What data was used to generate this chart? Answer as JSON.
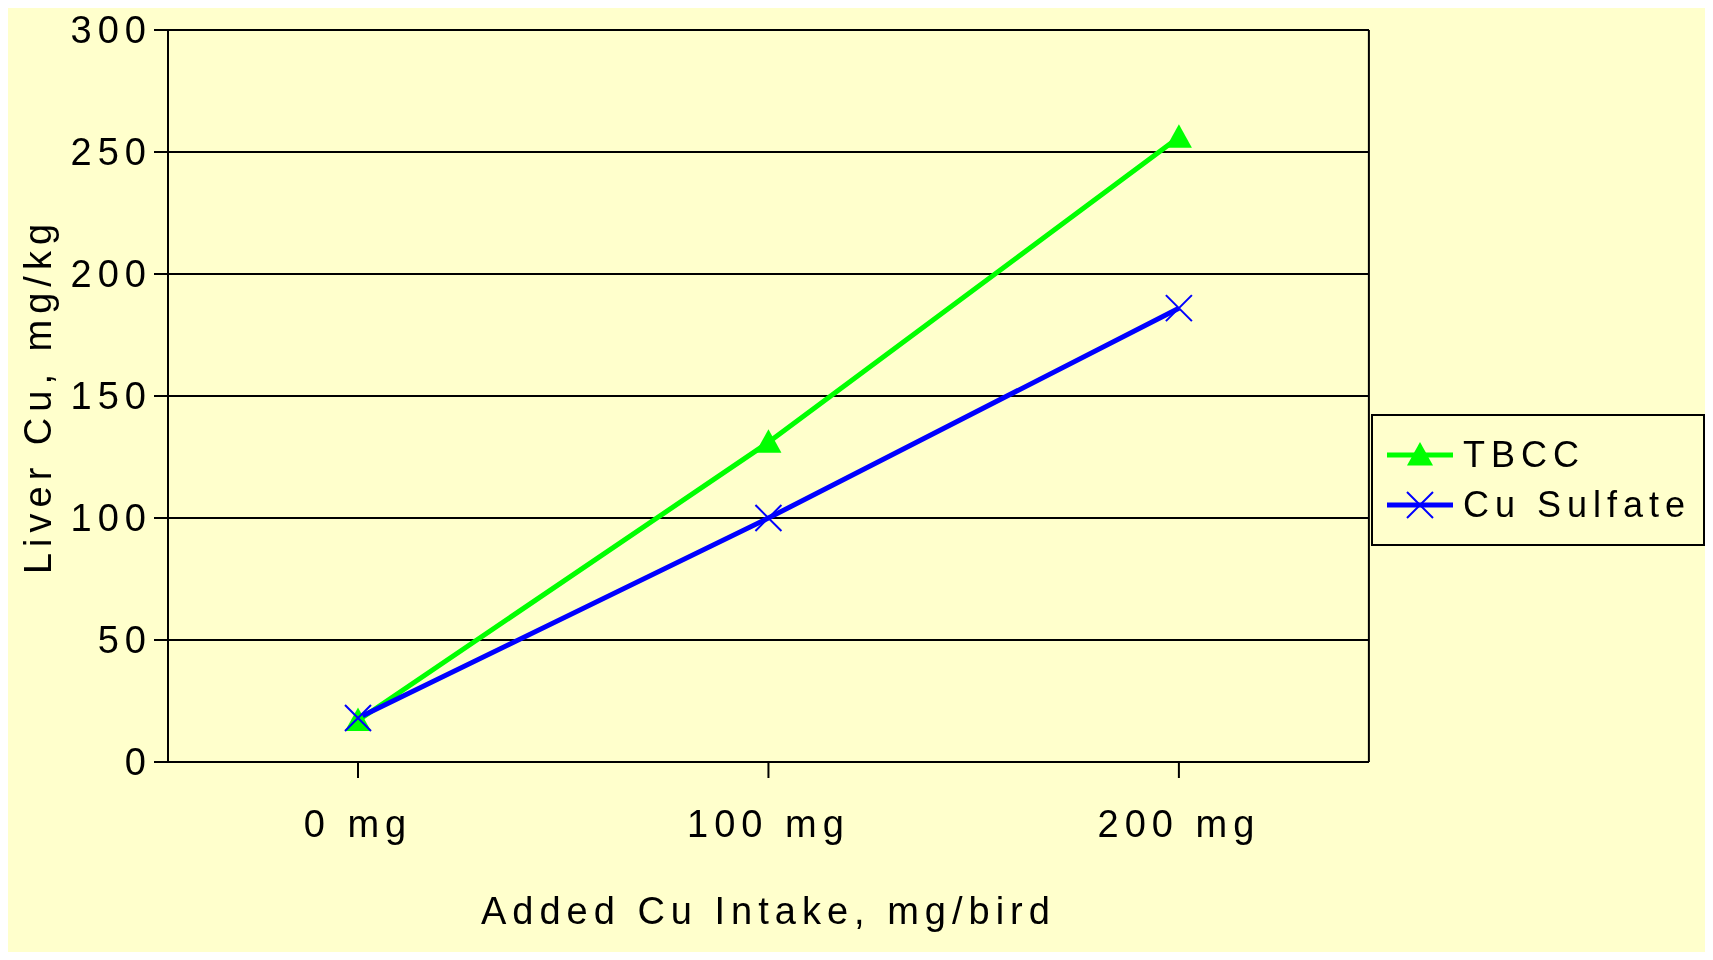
{
  "chart_data": {
    "type": "line",
    "xlabel": "Added Cu Intake, mg/bird",
    "ylabel": "Liver Cu, mg/kg",
    "categories": [
      "0 mg",
      "100 mg",
      "200 mg"
    ],
    "series": [
      {
        "name": "TBCC",
        "color": "#00ff00",
        "values": [
          17,
          131,
          256
        ],
        "marker": "triangle"
      },
      {
        "name": "Cu Sulfate",
        "color": "#0000ff",
        "values": [
          18,
          100,
          186
        ],
        "marker": "cross"
      }
    ],
    "ylim": [
      0,
      300
    ],
    "yticks": [
      0,
      50,
      100,
      150,
      200,
      250,
      300
    ],
    "grid": "y",
    "legend": "right",
    "line_style": "solid"
  }
}
